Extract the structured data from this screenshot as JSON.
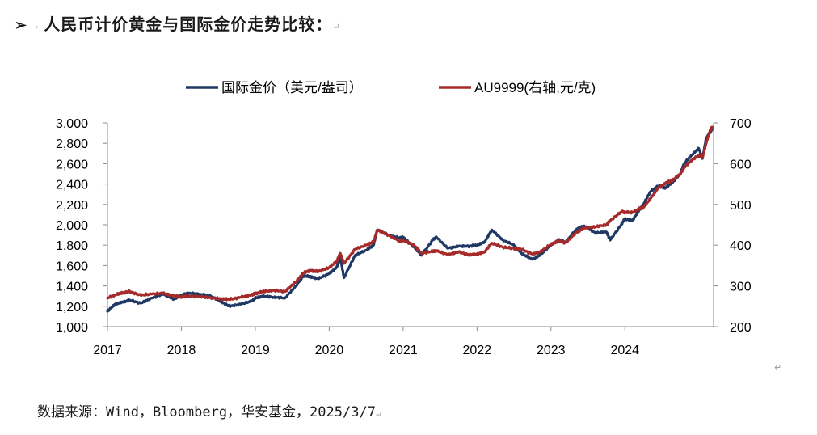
{
  "heading": {
    "arrow": "➢",
    "tab": "→",
    "text": "人民币计价黄金与国际金价走势比较：",
    "mark": "↵"
  },
  "end_mark": "↵",
  "source": {
    "text": "数据来源：Wind，Bloomberg，华安基金，2025/3/7",
    "mark": "↵"
  },
  "chart_data": {
    "type": "line",
    "title": "人民币计价黄金与国际金价走势比较",
    "xlabel": "",
    "ylabel_left": "",
    "ylabel_right": "",
    "x_ticks": [
      "2017",
      "2018",
      "2019",
      "2020",
      "2021",
      "2022",
      "2023",
      "2024"
    ],
    "xlim": [
      2017.0,
      2025.2
    ],
    "ylim_left": [
      1000,
      3000
    ],
    "yticks_left": [
      "1,000",
      "1,200",
      "1,400",
      "1,600",
      "1,800",
      "2,000",
      "2,200",
      "2,400",
      "2,600",
      "2,800",
      "3,000"
    ],
    "ylim_right": [
      200,
      700
    ],
    "yticks_right": [
      "200",
      "300",
      "400",
      "500",
      "600",
      "700"
    ],
    "legend_position": "top-center",
    "series": [
      {
        "name": "国际金价（美元/盎司）",
        "axis": "left",
        "color": "#1F3864",
        "x": [
          2017.0,
          2017.1,
          2017.2,
          2017.3,
          2017.45,
          2017.6,
          2017.75,
          2017.9,
          2018.0,
          2018.1,
          2018.25,
          2018.4,
          2018.55,
          2018.65,
          2018.8,
          2018.95,
          2019.0,
          2019.1,
          2019.25,
          2019.4,
          2019.55,
          2019.65,
          2019.75,
          2019.85,
          2020.0,
          2020.1,
          2020.15,
          2020.2,
          2020.35,
          2020.5,
          2020.6,
          2020.65,
          2020.8,
          2020.95,
          2021.0,
          2021.15,
          2021.25,
          2021.4,
          2021.45,
          2021.6,
          2021.75,
          2021.9,
          2022.0,
          2022.1,
          2022.2,
          2022.35,
          2022.5,
          2022.6,
          2022.75,
          2022.85,
          2023.0,
          2023.1,
          2023.2,
          2023.35,
          2023.45,
          2023.6,
          2023.75,
          2023.8,
          2023.95,
          2024.0,
          2024.1,
          2024.2,
          2024.25,
          2024.35,
          2024.45,
          2024.55,
          2024.65,
          2024.75,
          2024.8,
          2024.9,
          2025.0,
          2025.05,
          2025.1,
          2025.15,
          2025.18
        ],
        "values": [
          1150,
          1220,
          1240,
          1260,
          1230,
          1280,
          1320,
          1270,
          1310,
          1330,
          1320,
          1300,
          1240,
          1200,
          1220,
          1250,
          1280,
          1300,
          1290,
          1280,
          1400,
          1500,
          1490,
          1470,
          1520,
          1580,
          1680,
          1480,
          1700,
          1750,
          1800,
          1950,
          1900,
          1870,
          1880,
          1780,
          1700,
          1850,
          1880,
          1770,
          1790,
          1790,
          1800,
          1830,
          1950,
          1850,
          1800,
          1720,
          1660,
          1700,
          1800,
          1850,
          1830,
          1960,
          1990,
          1920,
          1930,
          1850,
          2000,
          2060,
          2040,
          2150,
          2200,
          2330,
          2380,
          2360,
          2420,
          2500,
          2600,
          2680,
          2750,
          2650,
          2850,
          2900,
          2940
        ]
      },
      {
        "name": "AU9999(右轴,元/克)",
        "axis": "right",
        "color": "#A52A2A",
        "x": [
          2017.0,
          2017.1,
          2017.2,
          2017.3,
          2017.45,
          2017.6,
          2017.75,
          2017.9,
          2018.0,
          2018.1,
          2018.25,
          2018.4,
          2018.55,
          2018.65,
          2018.8,
          2018.95,
          2019.0,
          2019.1,
          2019.25,
          2019.4,
          2019.55,
          2019.65,
          2019.75,
          2019.85,
          2020.0,
          2020.1,
          2020.15,
          2020.2,
          2020.35,
          2020.5,
          2020.6,
          2020.65,
          2020.8,
          2020.95,
          2021.0,
          2021.15,
          2021.25,
          2021.4,
          2021.45,
          2021.6,
          2021.75,
          2021.9,
          2022.0,
          2022.1,
          2022.2,
          2022.35,
          2022.5,
          2022.6,
          2022.75,
          2022.85,
          2023.0,
          2023.1,
          2023.2,
          2023.35,
          2023.45,
          2023.6,
          2023.75,
          2023.8,
          2023.95,
          2024.0,
          2024.1,
          2024.2,
          2024.25,
          2024.35,
          2024.45,
          2024.55,
          2024.65,
          2024.75,
          2024.8,
          2024.9,
          2025.0,
          2025.05,
          2025.1,
          2025.15,
          2025.18
        ],
        "values": [
          270,
          278,
          283,
          286,
          277,
          280,
          282,
          276,
          273,
          275,
          274,
          271,
          268,
          267,
          272,
          278,
          281,
          286,
          289,
          286,
          310,
          332,
          338,
          335,
          345,
          360,
          380,
          355,
          390,
          400,
          408,
          437,
          425,
          410,
          412,
          400,
          380,
          385,
          386,
          377,
          383,
          376,
          378,
          383,
          405,
          395,
          392,
          390,
          378,
          383,
          402,
          410,
          406,
          432,
          442,
          445,
          450,
          460,
          482,
          481,
          480,
          490,
          492,
          515,
          540,
          552,
          560,
          575,
          590,
          608,
          620,
          615,
          650,
          680,
          690
        ]
      }
    ]
  }
}
